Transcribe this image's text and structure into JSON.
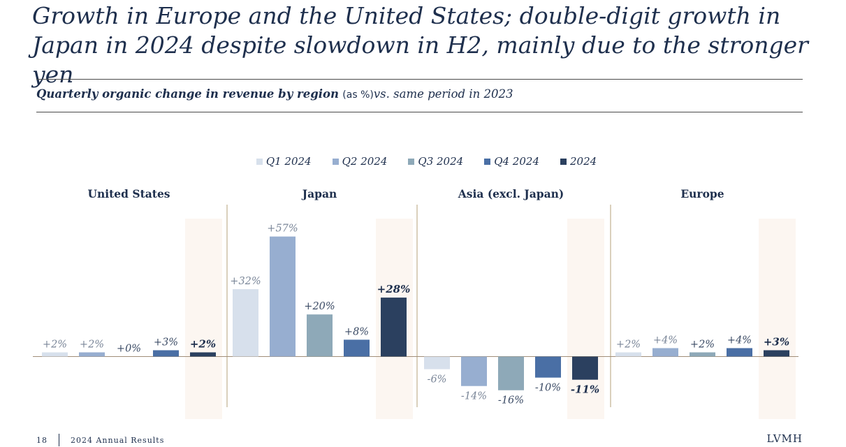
{
  "title": "Growth in Europe and the United States; double-digit growth in Japan in 2024 despite slowdown in H2, mainly due to the stronger yen",
  "subtitle": {
    "bold": "Quarterly organic change in revenue by region",
    "unit": "(as %)",
    "comparison": "vs. same period in 2023"
  },
  "colors": {
    "q1": "#d7e0ec",
    "q2": "#97aed0",
    "q3": "#8ea9b8",
    "q4": "#4a6fa5",
    "annual": "#2b405f",
    "highlight": "#fcf6f1",
    "divider": "#b5a07a",
    "axis": "#a08e79"
  },
  "chart_data": {
    "type": "bar",
    "categories": [
      "United States",
      "Japan",
      "Asia (excl. Japan)",
      "Europe"
    ],
    "series": [
      {
        "name": "Q1 2024",
        "values": [
          2,
          32,
          -6,
          2
        ],
        "labels": [
          "+2%",
          "+32%",
          "-6%",
          "+2%"
        ]
      },
      {
        "name": "Q2 2024",
        "values": [
          2,
          57,
          -14,
          4
        ],
        "labels": [
          "+2%",
          "+57%",
          "-14%",
          "+4%"
        ]
      },
      {
        "name": "Q3 2024",
        "values": [
          0,
          20,
          -16,
          2
        ],
        "labels": [
          "+0%",
          "+20%",
          "-16%",
          "+2%"
        ]
      },
      {
        "name": "Q4 2024",
        "values": [
          3,
          8,
          -10,
          4
        ],
        "labels": [
          "+3%",
          "+8%",
          "-10%",
          "+4%"
        ]
      },
      {
        "name": "2024",
        "values": [
          2,
          28,
          -11,
          3
        ],
        "labels": [
          "+2%",
          "+28%",
          "-11%",
          "+3%"
        ]
      }
    ],
    "ylabel": "",
    "xlabel": "",
    "legend": "top-center",
    "grid": false
  },
  "footer": {
    "page": "18",
    "text": "2024 Annual Results",
    "brand": "LVMH"
  }
}
